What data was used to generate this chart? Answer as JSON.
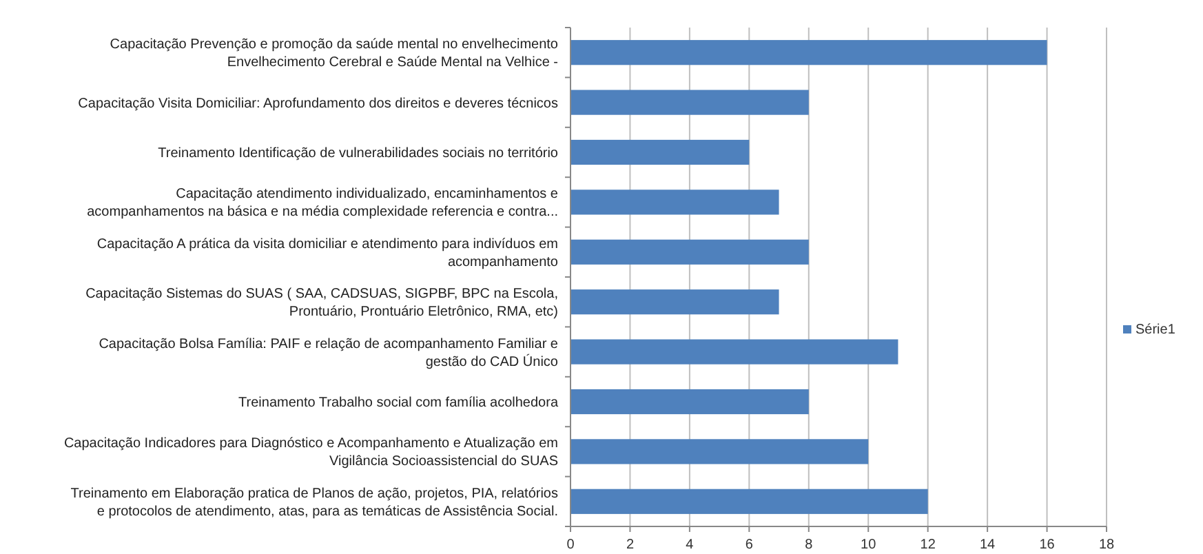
{
  "chart_data": {
    "type": "bar",
    "orientation": "horizontal",
    "categories": [
      "Capacitação Prevenção e promoção da saúde mental no envelhecimento\nEnvelhecimento Cerebral e Saúde Mental na Velhice -",
      "Capacitação Visita Domiciliar: Aprofundamento dos direitos e deveres técnicos",
      "Treinamento Identificação de vulnerabilidades sociais no território",
      "Capacitação atendimento individualizado, encaminhamentos e\nacompanhamentos na básica e na média complexidade referencia e contra...",
      "Capacitação A prática da visita domiciliar e atendimento para indivíduos em\nacompanhamento",
      "Capacitação Sistemas do SUAS ( SAA, CADSUAS, SIGPBF, BPC na Escola,\nProntuário, Prontuário Eletrônico, RMA, etc)",
      "Capacitação Bolsa Família: PAIF e relação de acompanhamento Familiar e\ngestão do CAD Único",
      "Treinamento Trabalho social com família acolhedora",
      "Capacitação Indicadores para Diagnóstico e Acompanhamento e Atualização em\nVigilância Socioassistencial do SUAS",
      "Treinamento em Elaboração pratica de Planos de ação, projetos, PIA, relatórios\ne protocolos de atendimento, atas, para as temáticas de Assistência Social."
    ],
    "series": [
      {
        "name": "Série1",
        "color": "#4f81bd",
        "values": [
          16,
          8,
          6,
          7,
          8,
          7,
          11,
          8,
          10,
          12
        ]
      }
    ],
    "xlim": [
      0,
      18
    ],
    "xticks": [
      0,
      2,
      4,
      6,
      8,
      10,
      12,
      14,
      16,
      18
    ],
    "grid": "x",
    "legend": "right"
  }
}
